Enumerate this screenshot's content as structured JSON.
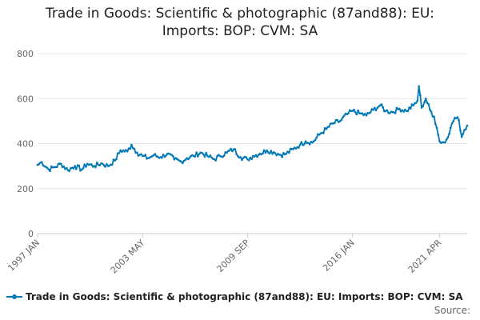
{
  "chart_data": {
    "type": "line",
    "title": "Trade in Goods: Scientific & photographic (87and88): EU:\nImports: BOP: CVM: SA",
    "xlabel": "",
    "ylabel": "",
    "ylim": [
      0,
      800
    ],
    "yticks": [
      0,
      200,
      400,
      600,
      800
    ],
    "x_range": [
      "1997 JAN",
      "2021 APR"
    ],
    "xtick_labels": [
      "1997 JAN",
      "2003 MAY",
      "2009 SEP",
      "2016 JAN",
      "2021 APR"
    ],
    "grid": true,
    "legend_position": "bottom",
    "colors": {
      "series": "#0077b6",
      "grid": "#e6e6e6",
      "axis": "#cccccc"
    },
    "series": [
      {
        "name": "Trade in Goods: Scientific & photographic (87and88): EU: Imports: BOP: CVM: SA",
        "anchors": [
          [
            "1997-01",
            305
          ],
          [
            "1997-04",
            318
          ],
          [
            "1997-09",
            285
          ],
          [
            "1998-01",
            295
          ],
          [
            "1998-06",
            310
          ],
          [
            "1998-11",
            282
          ],
          [
            "1999-04",
            300
          ],
          [
            "1999-09",
            285
          ],
          [
            "2000-01",
            310
          ],
          [
            "2000-06",
            300
          ],
          [
            "2000-11",
            312
          ],
          [
            "2001-04",
            300
          ],
          [
            "2001-09",
            325
          ],
          [
            "2002-01",
            370
          ],
          [
            "2002-06",
            365
          ],
          [
            "2002-09",
            395
          ],
          [
            "2003-01",
            360
          ],
          [
            "2003-05",
            345
          ],
          [
            "2003-09",
            335
          ],
          [
            "2004-01",
            348
          ],
          [
            "2004-06",
            340
          ],
          [
            "2004-11",
            355
          ],
          [
            "2005-04",
            330
          ],
          [
            "2005-09",
            320
          ],
          [
            "2006-01",
            335
          ],
          [
            "2006-06",
            345
          ],
          [
            "2006-11",
            360
          ],
          [
            "2007-04",
            345
          ],
          [
            "2007-09",
            330
          ],
          [
            "2008-01",
            345
          ],
          [
            "2008-06",
            360
          ],
          [
            "2008-11",
            375
          ],
          [
            "2009-04",
            340
          ],
          [
            "2009-09",
            330
          ],
          [
            "2010-01",
            345
          ],
          [
            "2010-06",
            355
          ],
          [
            "2010-11",
            370
          ],
          [
            "2011-04",
            362
          ],
          [
            "2011-09",
            350
          ],
          [
            "2012-01",
            355
          ],
          [
            "2012-06",
            375
          ],
          [
            "2012-11",
            395
          ],
          [
            "2013-03",
            410
          ],
          [
            "2013-08",
            405
          ],
          [
            "2014-01",
            440
          ],
          [
            "2014-06",
            465
          ],
          [
            "2014-11",
            490
          ],
          [
            "2015-04",
            500
          ],
          [
            "2015-09",
            530
          ],
          [
            "2016-01",
            545
          ],
          [
            "2016-06",
            535
          ],
          [
            "2016-11",
            525
          ],
          [
            "2017-04",
            550
          ],
          [
            "2017-09",
            570
          ],
          [
            "2018-01",
            545
          ],
          [
            "2018-06",
            540
          ],
          [
            "2018-11",
            555
          ],
          [
            "2019-04",
            545
          ],
          [
            "2019-09",
            570
          ],
          [
            "2019-12",
            590
          ],
          [
            "2020-01",
            655
          ],
          [
            "2020-03",
            560
          ],
          [
            "2020-06",
            600
          ],
          [
            "2020-09",
            550
          ],
          [
            "2020-12",
            520
          ],
          [
            "2021-02",
            470
          ],
          [
            "2021-04",
            410
          ],
          [
            "2021-08",
            405
          ],
          [
            "2021-12",
            470
          ],
          [
            "2022-03",
            515
          ],
          [
            "2022-06",
            505
          ],
          [
            "2022-08",
            430
          ],
          [
            "2022-10",
            460
          ],
          [
            "2022-12",
            480
          ]
        ]
      }
    ]
  },
  "legend_label": "Trade in Goods: Scientific & photographic (87and88): EU: Imports: BOP: CVM: SA",
  "source_label": "Source:"
}
